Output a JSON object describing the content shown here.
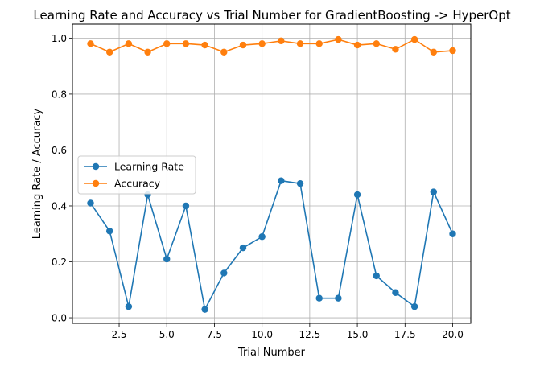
{
  "chart_data": {
    "type": "line",
    "title": "Learning Rate and Accuracy vs Trial Number for GradientBoosting -> HyperOpt",
    "xlabel": "Trial Number",
    "ylabel": "Learning Rate / Accuracy",
    "xlim": [
      0.05,
      20.95
    ],
    "ylim": [
      -0.02,
      1.05
    ],
    "grid": true,
    "legend_position": "center-left",
    "x": [
      1,
      2,
      3,
      4,
      5,
      6,
      7,
      8,
      9,
      10,
      11,
      12,
      13,
      14,
      15,
      16,
      17,
      18,
      19,
      20
    ],
    "x_ticks": [
      {
        "value": 2.5,
        "label": "2.5"
      },
      {
        "value": 5,
        "label": "5.0"
      },
      {
        "value": 7.5,
        "label": "7.5"
      },
      {
        "value": 10,
        "label": "10.0"
      },
      {
        "value": 12.5,
        "label": "12.5"
      },
      {
        "value": 15,
        "label": "15.0"
      },
      {
        "value": 17.5,
        "label": "17.5"
      },
      {
        "value": 20,
        "label": "20.0"
      }
    ],
    "y_ticks": [
      {
        "value": 0,
        "label": "0.0"
      },
      {
        "value": 0.2,
        "label": "0.2"
      },
      {
        "value": 0.4,
        "label": "0.4"
      },
      {
        "value": 0.6,
        "label": "0.6"
      },
      {
        "value": 0.8,
        "label": "0.8"
      },
      {
        "value": 1.0,
        "label": "1.0"
      }
    ],
    "series": [
      {
        "name": "Learning Rate",
        "color": "#1f77b4",
        "values": [
          0.41,
          0.31,
          0.04,
          0.44,
          0.21,
          0.4,
          0.03,
          0.16,
          0.25,
          0.29,
          0.49,
          0.48,
          0.07,
          0.07,
          0.44,
          0.15,
          0.09,
          0.04,
          0.45,
          0.3
        ]
      },
      {
        "name": "Accuracy",
        "color": "#ff7f0e",
        "values": [
          0.98,
          0.95,
          0.98,
          0.95,
          0.98,
          0.98,
          0.975,
          0.95,
          0.975,
          0.98,
          0.99,
          0.98,
          0.98,
          0.995,
          0.975,
          0.98,
          0.96,
          0.995,
          0.95,
          0.955
        ]
      }
    ]
  }
}
